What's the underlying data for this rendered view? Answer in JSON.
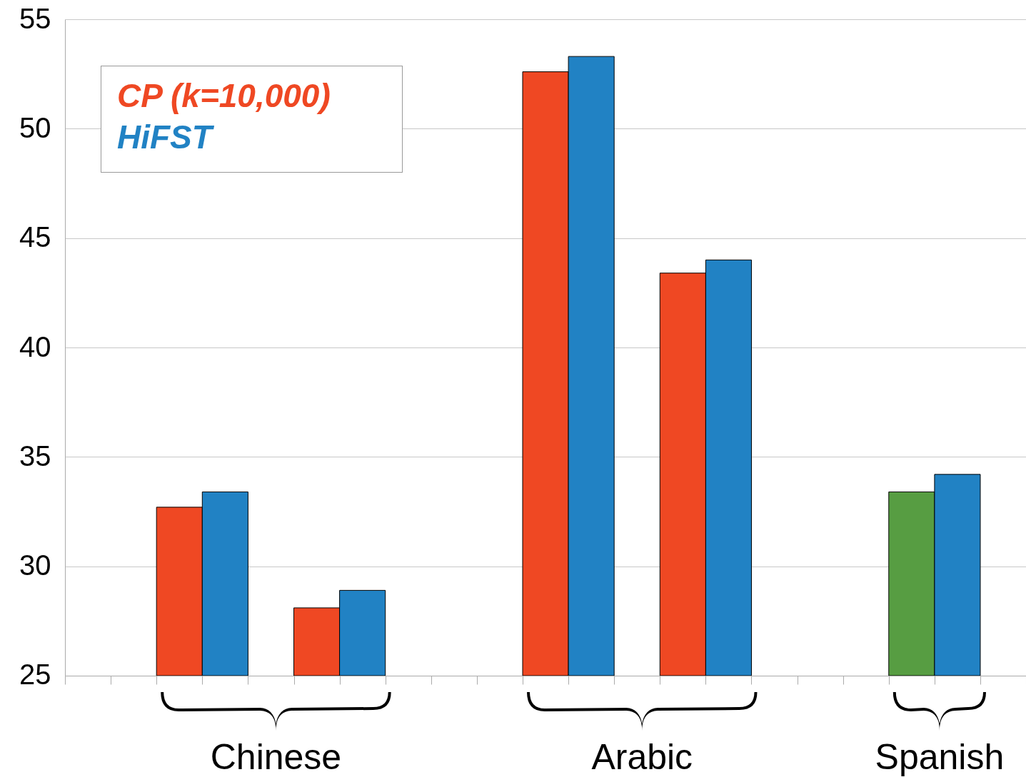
{
  "chart_data": {
    "type": "bar",
    "categories": [
      null,
      null,
      null,
      null,
      null,
      null,
      null,
      null,
      null,
      null,
      null,
      null,
      null,
      null,
      null,
      null,
      null,
      null,
      null,
      null,
      null
    ],
    "series": [
      {
        "name": "CP (k=10,000)",
        "color": "#ef4823",
        "values": [
          null,
          null,
          32.7,
          null,
          null,
          28.1,
          null,
          null,
          null,
          null,
          52.6,
          null,
          null,
          43.4,
          null,
          null,
          null,
          null,
          33.4,
          null,
          null
        ],
        "colors": [
          null,
          null,
          "#ef4823",
          null,
          null,
          "#ef4823",
          null,
          null,
          null,
          null,
          "#ef4823",
          null,
          null,
          "#ef4823",
          null,
          null,
          null,
          null,
          "#579d42",
          null,
          null
        ]
      },
      {
        "name": "HiFST",
        "color": "#2182c4",
        "values": [
          null,
          null,
          null,
          33.4,
          null,
          null,
          28.9,
          null,
          null,
          null,
          null,
          53.3,
          null,
          null,
          44.0,
          null,
          null,
          null,
          null,
          34.2,
          null
        ]
      }
    ],
    "ylim": [
      25,
      55
    ],
    "yticks": [
      25,
      30,
      35,
      40,
      45,
      50,
      55
    ],
    "grid": "y",
    "legend": "top left",
    "tick_labels": "y",
    "annotations": [
      "Chinese",
      "Arabic",
      "Spanish"
    ]
  }
}
